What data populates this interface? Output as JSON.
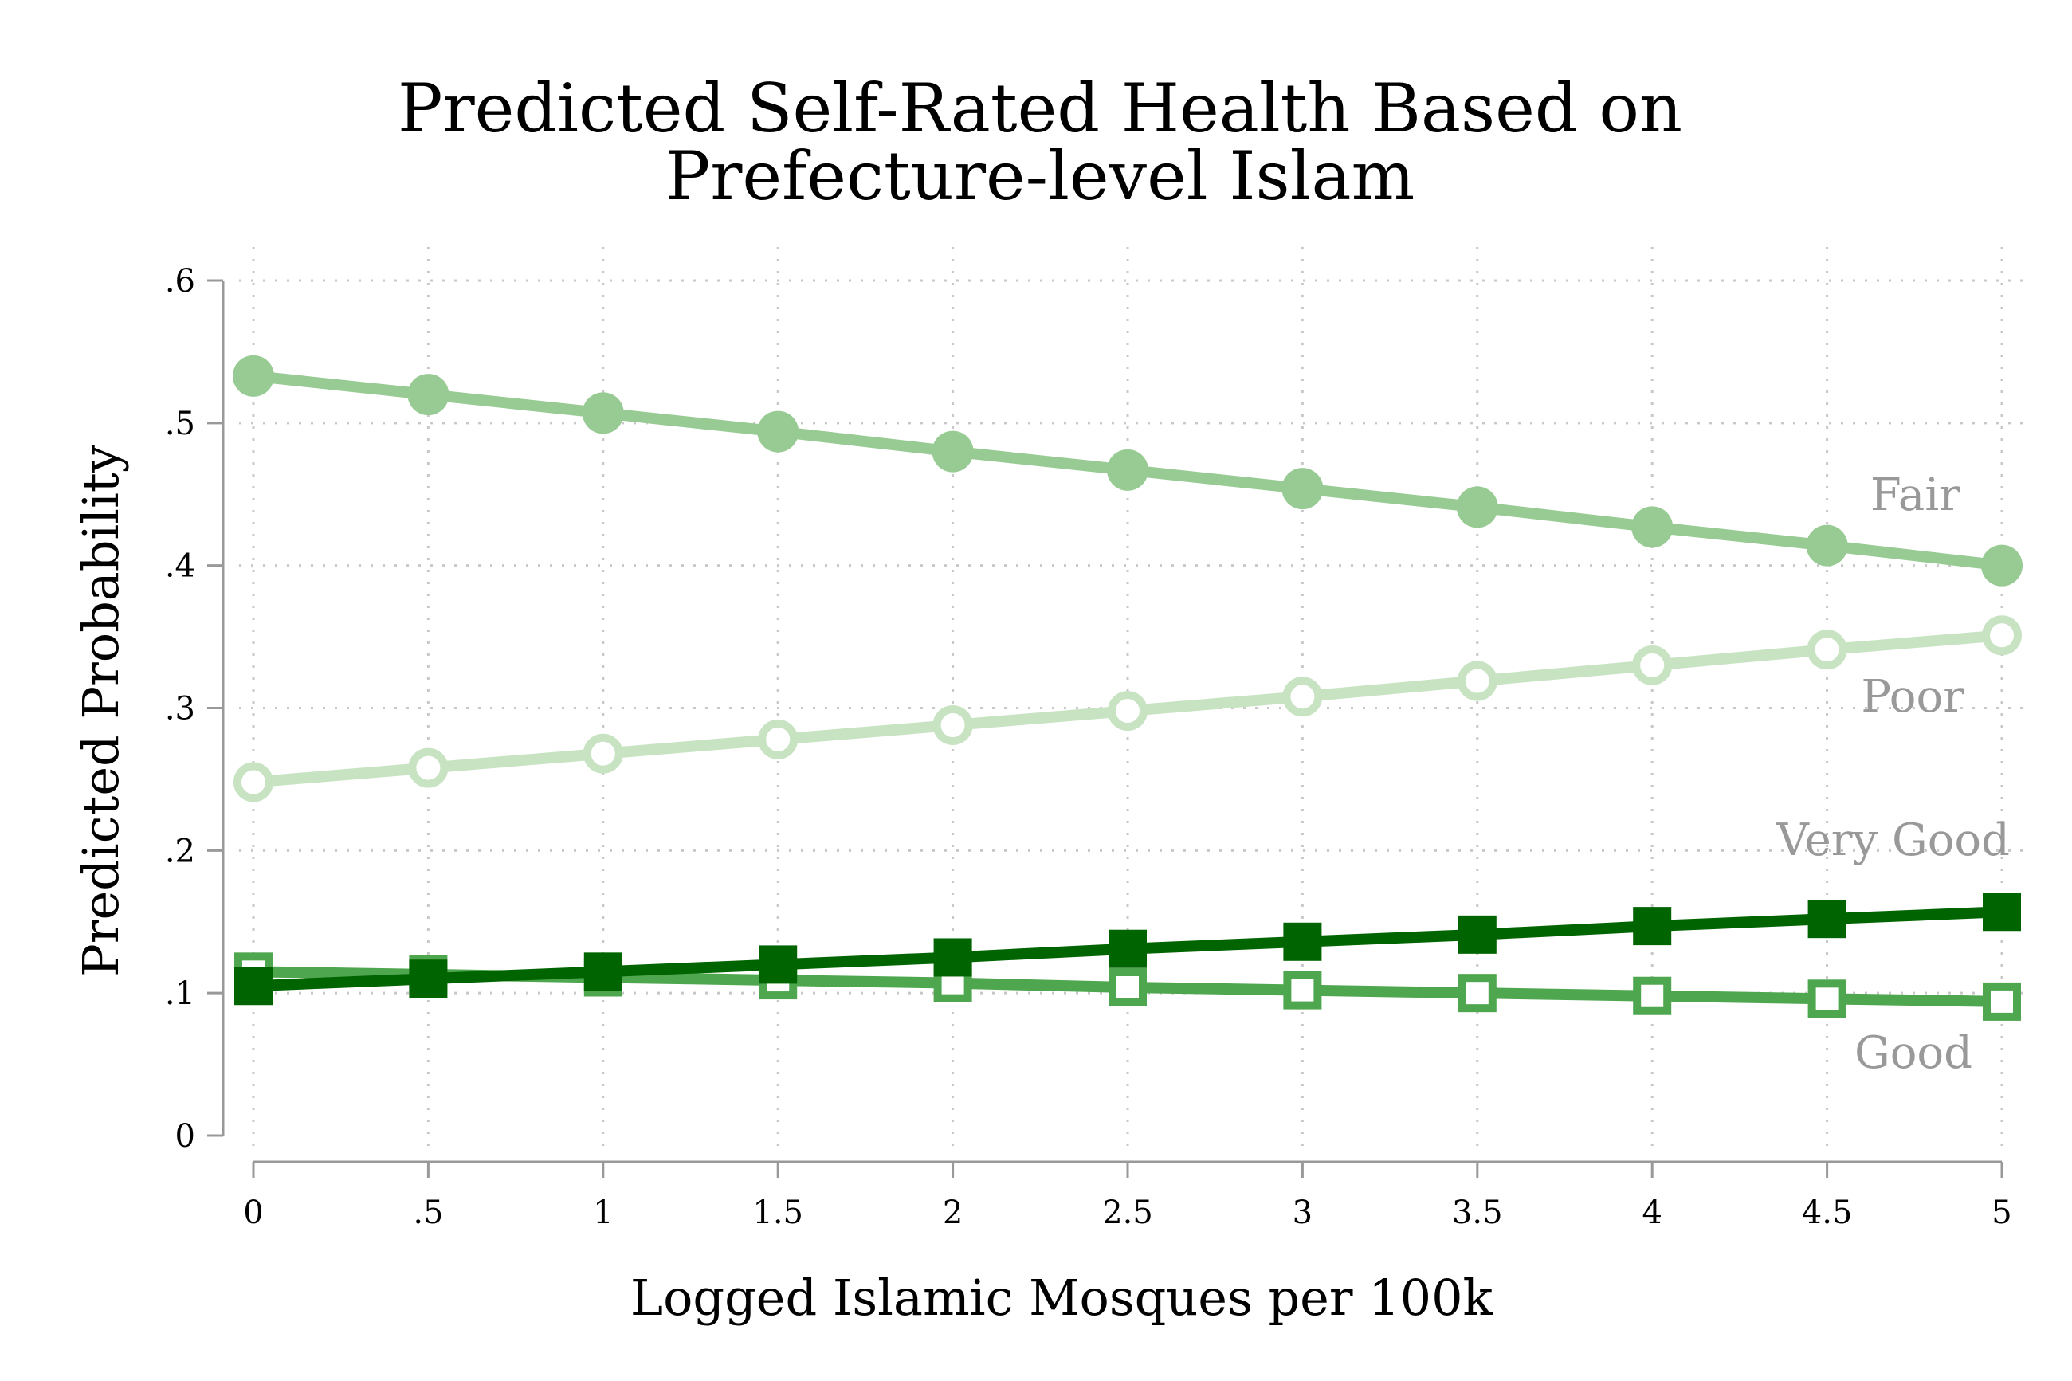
{
  "chart_data": {
    "type": "line",
    "title": [
      "Predicted Self-Rated Health Based on",
      "Prefecture-level Islam"
    ],
    "xlabel": "Logged Islamic Mosques per 100k",
    "ylabel": "Predicted Probability",
    "x": [
      0,
      0.5,
      1,
      1.5,
      2,
      2.5,
      3,
      3.5,
      4,
      4.5,
      5
    ],
    "xticks": [
      0,
      0.5,
      1,
      1.5,
      2,
      2.5,
      3,
      3.5,
      4,
      4.5,
      5
    ],
    "xtick_labels": [
      "0",
      ".5",
      "1",
      "1.5",
      "2",
      "2.5",
      "3",
      "3.5",
      "4",
      "4.5",
      "5"
    ],
    "yticks": [
      0,
      0.1,
      0.2,
      0.3,
      0.4,
      0.5,
      0.6
    ],
    "ytick_labels": [
      "0",
      ".1",
      ".2",
      ".3",
      ".4",
      ".5",
      ".6"
    ],
    "xlim": [
      0,
      5
    ],
    "ylim": [
      0,
      0.6
    ],
    "grid": true,
    "legend": "none",
    "series": [
      {
        "name": "Poor",
        "marker": "hollow-circle",
        "color": "#c7e3c2",
        "values": [
          0.248,
          0.258,
          0.268,
          0.278,
          0.288,
          0.298,
          0.308,
          0.319,
          0.33,
          0.341,
          0.351
        ]
      },
      {
        "name": "Fair",
        "marker": "filled-circle",
        "color": "#98cb94",
        "values": [
          0.533,
          0.52,
          0.507,
          0.494,
          0.48,
          0.467,
          0.454,
          0.441,
          0.427,
          0.414,
          0.4
        ]
      },
      {
        "name": "Good",
        "marker": "hollow-square",
        "color": "#4ea64e",
        "values": [
          0.115,
          0.113,
          0.111,
          0.109,
          0.107,
          0.104,
          0.102,
          0.1,
          0.098,
          0.096,
          0.094
        ]
      },
      {
        "name": "Very Good",
        "marker": "filled-square",
        "color": "#006400",
        "values": [
          0.105,
          0.11,
          0.115,
          0.12,
          0.125,
          0.131,
          0.136,
          0.141,
          0.147,
          0.152,
          0.157
        ]
      }
    ]
  }
}
